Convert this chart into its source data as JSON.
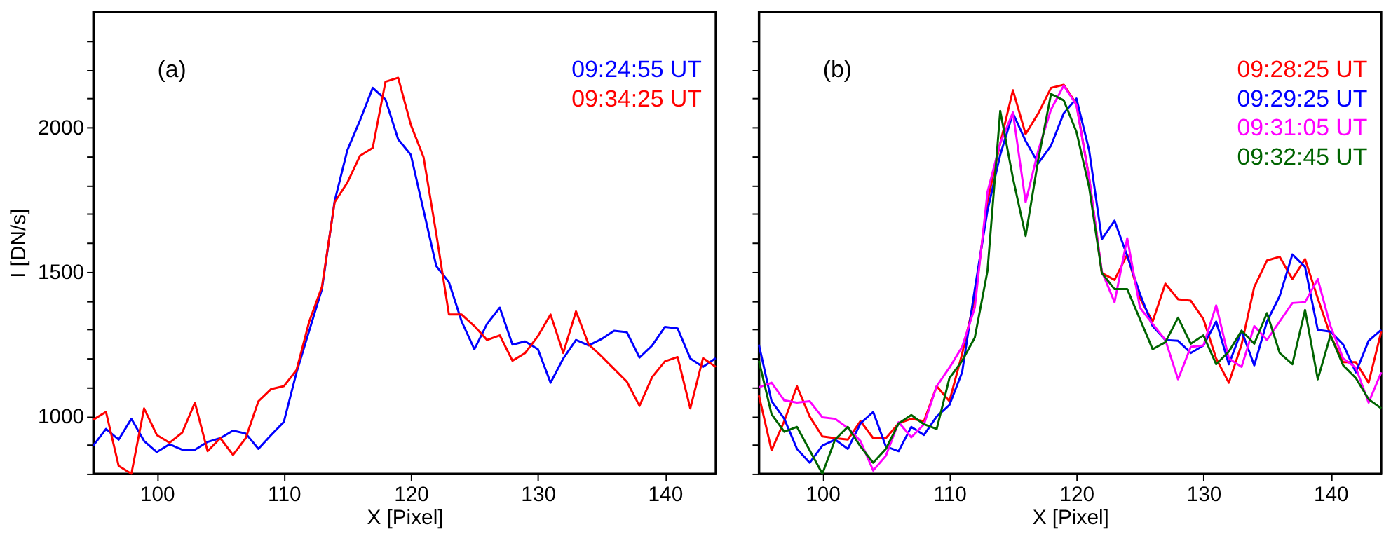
{
  "chart_data": [
    {
      "type": "line",
      "xlabel": "X [Pixel]",
      "ylabel": "I [DN/s]",
      "annotations": [
        "(a)"
      ],
      "legend": "top right",
      "grid": false,
      "x": [
        95,
        96,
        97,
        98,
        99,
        100,
        101,
        102,
        103,
        104,
        105,
        106,
        107,
        108,
        109,
        110,
        111,
        112,
        113,
        114,
        115,
        116,
        117,
        118,
        119,
        120,
        121,
        122,
        123,
        124,
        125,
        126,
        127,
        128,
        129,
        130,
        131,
        132,
        133,
        134,
        135,
        136,
        137,
        138,
        139,
        140,
        141,
        142,
        143,
        144
      ],
      "xlim": [
        95,
        144
      ],
      "xticks": [
        100,
        110,
        120,
        130,
        140
      ],
      "ylim": [
        800,
        2400
      ],
      "yticks": [
        {
          "value": 800,
          "label": null
        },
        {
          "value": 900,
          "label": null
        },
        1000,
        {
          "value": 1100,
          "label": null
        },
        {
          "value": 1200,
          "label": null
        },
        {
          "value": 1300,
          "label": null
        },
        {
          "value": 1400,
          "label": null
        },
        1500,
        {
          "value": 1600,
          "label": null
        },
        {
          "value": 1700,
          "label": null
        },
        {
          "value": 1800,
          "label": null
        },
        {
          "value": 1900,
          "label": null
        },
        2000,
        {
          "value": 2100,
          "label": null
        },
        {
          "value": 2200,
          "label": null
        },
        {
          "value": 2300,
          "label": null
        }
      ],
      "series": [
        {
          "name": "09:24:55 UT",
          "color": "#0000ff",
          "values": [
            897,
            955,
            918,
            990,
            913,
            875,
            902,
            883,
            883,
            910,
            923,
            949,
            939,
            886,
            934,
            979,
            1151,
            1295,
            1439,
            1744,
            1920,
            2024,
            2136,
            2096,
            1958,
            1904,
            1712,
            1519,
            1463,
            1327,
            1231,
            1319,
            1375,
            1247,
            1258,
            1231,
            1115,
            1199,
            1263,
            1244,
            1266,
            1295,
            1290,
            1202,
            1244,
            1308,
            1303,
            1199,
            1170,
            1200
          ]
        },
        {
          "name": "09:34:25 UT",
          "color": "#ff0000",
          "values": [
            987,
            1014,
            827,
            800,
            1026,
            934,
            907,
            942,
            1046,
            878,
            923,
            865,
            923,
            1051,
            1093,
            1103,
            1159,
            1327,
            1447,
            1740,
            1808,
            1901,
            1928,
            2157,
            2171,
            2008,
            1896,
            1631,
            1351,
            1351,
            1311,
            1263,
            1279,
            1191,
            1218,
            1276,
            1351,
            1218,
            1362,
            1247,
            1207,
            1163,
            1119,
            1035,
            1135,
            1189,
            1204,
            1026,
            1200,
            1170
          ]
        }
      ]
    },
    {
      "type": "line",
      "xlabel": "X [Pixel]",
      "annotations": [
        "(b)"
      ],
      "legend": "top right",
      "grid": false,
      "tick_labels": "x",
      "x": [
        95,
        96,
        97,
        98,
        99,
        100,
        101,
        102,
        103,
        104,
        105,
        106,
        107,
        108,
        109,
        110,
        111,
        112,
        113,
        114,
        115,
        116,
        117,
        118,
        119,
        120,
        121,
        122,
        123,
        124,
        125,
        126,
        127,
        128,
        129,
        130,
        131,
        132,
        133,
        134,
        135,
        136,
        137,
        138,
        139,
        140,
        141,
        142,
        143,
        144
      ],
      "xlim": [
        95,
        144
      ],
      "xticks": [
        100,
        110,
        120,
        130,
        140
      ],
      "ylim": [
        800,
        2400
      ],
      "yticks": [
        {
          "value": 800,
          "label": null
        },
        {
          "value": 900,
          "label": null
        },
        1000,
        {
          "value": 1100,
          "label": null
        },
        {
          "value": 1200,
          "label": null
        },
        {
          "value": 1300,
          "label": null
        },
        {
          "value": 1400,
          "label": null
        },
        1500,
        {
          "value": 1600,
          "label": null
        },
        {
          "value": 1700,
          "label": null
        },
        {
          "value": 1800,
          "label": null
        },
        {
          "value": 1900,
          "label": null
        },
        2000,
        {
          "value": 2100,
          "label": null
        },
        {
          "value": 2200,
          "label": null
        },
        {
          "value": 2300,
          "label": null
        }
      ],
      "series": [
        {
          "name": "09:28:25 UT",
          "color": "#ff0000",
          "values": [
            1071,
            881,
            982,
            1103,
            998,
            929,
            923,
            918,
            982,
            923,
            923,
            974,
            990,
            982,
            1103,
            1051,
            1215,
            1407,
            1744,
            1944,
            2128,
            1976,
            2048,
            2136,
            2147,
            2080,
            1824,
            1495,
            1471,
            1559,
            1407,
            1327,
            1458,
            1404,
            1399,
            1335,
            1199,
            1115,
            1247,
            1447,
            1538,
            1551,
            1474,
            1543,
            1407,
            1279,
            1186,
            1186,
            1115,
            1292
          ]
        },
        {
          "name": "09:29:25 UT",
          "color": "#0000ff",
          "values": [
            1247,
            1051,
            990,
            886,
            838,
            897,
            918,
            886,
            974,
            1014,
            894,
            878,
            962,
            934,
            998,
            1038,
            1151,
            1439,
            1712,
            1904,
            2048,
            1952,
            1875,
            1936,
            2048,
            2099,
            1920,
            1612,
            1676,
            1554,
            1423,
            1311,
            1263,
            1260,
            1218,
            1244,
            1327,
            1179,
            1295,
            1175,
            1327,
            1415,
            1559,
            1516,
            1298,
            1292,
            1247,
            1151,
            1260,
            1298
          ]
        },
        {
          "name": "09:31:05 UT",
          "color": "#ff00ff",
          "values": [
            1099,
            1115,
            1054,
            1046,
            1051,
            995,
            990,
            958,
            913,
            811,
            862,
            978,
            926,
            971,
            1103,
            1167,
            1239,
            1375,
            1776,
            1944,
            2051,
            1740,
            1920,
            2061,
            2144,
            2077,
            1824,
            1500,
            1394,
            1615,
            1375,
            1319,
            1263,
            1127,
            1239,
            1244,
            1383,
            1199,
            1170,
            1311,
            1263,
            1327,
            1391,
            1394,
            1474,
            1311,
            1199,
            1167,
            1046,
            1151
          ]
        },
        {
          "name": "09:32:45 UT",
          "color": "#006400",
          "values": [
            1191,
            1006,
            945,
            962,
            881,
            800,
            918,
            962,
            894,
            838,
            886,
            974,
            1003,
            971,
            955,
            1131,
            1191,
            1271,
            1503,
            2056,
            1824,
            1623,
            1888,
            2115,
            2093,
            1984,
            1792,
            1495,
            1439,
            1439,
            1335,
            1231,
            1255,
            1340,
            1250,
            1279,
            1179,
            1223,
            1295,
            1250,
            1356,
            1218,
            1179,
            1367,
            1127,
            1279,
            1175,
            1131,
            1058,
            1026
          ]
        }
      ]
    }
  ]
}
